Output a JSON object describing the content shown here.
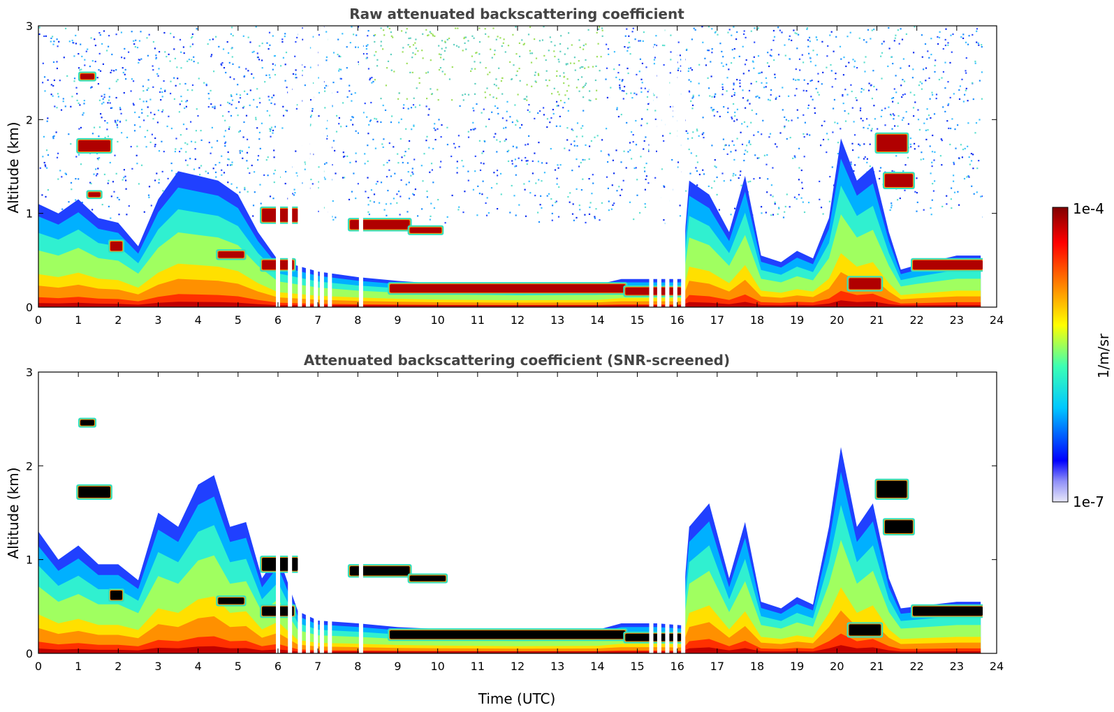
{
  "chart_data": [
    {
      "type": "heatmap",
      "title": "Raw attenuated backscattering coefficient",
      "xlabel": "",
      "ylabel": "Altitude (km)",
      "xlim": [
        0,
        24
      ],
      "ylim": [
        0,
        3
      ],
      "x_ticks": [
        "0",
        "1",
        "2",
        "3",
        "4",
        "5",
        "6",
        "7",
        "8",
        "9",
        "10",
        "11",
        "12",
        "13",
        "14",
        "15",
        "16",
        "17",
        "18",
        "19",
        "20",
        "21",
        "22",
        "23",
        "24"
      ],
      "y_ticks": [
        "0",
        "1",
        "2",
        "3"
      ],
      "screened": false,
      "data_end_hour": 23.65,
      "gaps_utc": [
        6.0,
        6.3,
        6.55,
        6.75,
        6.95,
        7.1,
        7.3,
        8.08,
        15.35,
        15.55,
        15.75,
        15.95,
        16.15
      ],
      "boundary_layer_top_km": [
        [
          0,
          1.1
        ],
        [
          0.5,
          1.0
        ],
        [
          1.0,
          1.15
        ],
        [
          1.5,
          0.95
        ],
        [
          2.0,
          0.9
        ],
        [
          2.5,
          0.65
        ],
        [
          3.0,
          1.15
        ],
        [
          3.5,
          1.45
        ],
        [
          4.0,
          1.4
        ],
        [
          4.5,
          1.35
        ],
        [
          5.0,
          1.2
        ],
        [
          5.5,
          0.8
        ],
        [
          6.0,
          0.5
        ],
        [
          7.0,
          0.38
        ],
        [
          8.0,
          0.32
        ],
        [
          9.0,
          0.28
        ],
        [
          10.0,
          0.25
        ],
        [
          12.0,
          0.23
        ],
        [
          14.0,
          0.24
        ],
        [
          14.6,
          0.3
        ],
        [
          15.5,
          0.3
        ],
        [
          16.1,
          0.3
        ],
        [
          16.3,
          1.35
        ],
        [
          16.8,
          1.2
        ],
        [
          17.3,
          0.8
        ],
        [
          17.7,
          1.4
        ],
        [
          18.1,
          0.55
        ],
        [
          18.6,
          0.48
        ],
        [
          19.0,
          0.6
        ],
        [
          19.4,
          0.52
        ],
        [
          19.8,
          0.95
        ],
        [
          20.1,
          1.8
        ],
        [
          20.5,
          1.35
        ],
        [
          20.9,
          1.5
        ],
        [
          21.3,
          0.8
        ],
        [
          21.6,
          0.4
        ],
        [
          22.0,
          0.45
        ],
        [
          23.0,
          0.55
        ],
        [
          23.6,
          0.55
        ]
      ],
      "cloud_layers": [
        {
          "t0": 1.05,
          "t1": 1.4,
          "z": 2.46,
          "dz": 0.06
        },
        {
          "t0": 1.0,
          "t1": 1.8,
          "z": 1.72,
          "dz": 0.12
        },
        {
          "t0": 1.25,
          "t1": 1.55,
          "z": 1.2,
          "dz": 0.05
        },
        {
          "t0": 1.8,
          "t1": 2.1,
          "z": 0.65,
          "dz": 0.1
        },
        {
          "t0": 4.5,
          "t1": 5.15,
          "z": 0.56,
          "dz": 0.07
        },
        {
          "t0": 5.6,
          "t1": 6.5,
          "z": 0.98,
          "dz": 0.14
        },
        {
          "t0": 5.6,
          "t1": 6.4,
          "z": 0.45,
          "dz": 0.1
        },
        {
          "t0": 7.8,
          "t1": 9.3,
          "z": 0.88,
          "dz": 0.1
        },
        {
          "t0": 9.3,
          "t1": 10.1,
          "z": 0.82,
          "dz": 0.06
        },
        {
          "t0": 8.8,
          "t1": 14.7,
          "z": 0.2,
          "dz": 0.09
        },
        {
          "t0": 14.7,
          "t1": 16.1,
          "z": 0.17,
          "dz": 0.08
        },
        {
          "t0": 20.3,
          "t1": 21.1,
          "z": 0.25,
          "dz": 0.12
        },
        {
          "t0": 21.0,
          "t1": 21.75,
          "z": 1.75,
          "dz": 0.18
        },
        {
          "t0": 21.2,
          "t1": 21.9,
          "z": 1.35,
          "dz": 0.14
        },
        {
          "t0": 21.9,
          "t1": 23.65,
          "z": 0.45,
          "dz": 0.1
        }
      ]
    },
    {
      "type": "heatmap",
      "title": "Attenuated backscattering coefficient (SNR-screened)",
      "xlabel": "Time (UTC)",
      "ylabel": "Altitude (km)",
      "xlim": [
        0,
        24
      ],
      "ylim": [
        0,
        3
      ],
      "x_ticks": [
        "0",
        "1",
        "2",
        "3",
        "4",
        "5",
        "6",
        "7",
        "8",
        "9",
        "10",
        "11",
        "12",
        "13",
        "14",
        "15",
        "16",
        "17",
        "18",
        "19",
        "20",
        "21",
        "22",
        "23",
        "24"
      ],
      "y_ticks": [
        "0",
        "1",
        "2",
        "3"
      ],
      "screened": true,
      "data_end_hour": 23.65,
      "gaps_utc": [
        6.0,
        6.3,
        6.55,
        6.75,
        6.95,
        7.1,
        7.3,
        8.08,
        15.35,
        15.55,
        15.75,
        15.95,
        16.15
      ],
      "boundary_layer_top_km": [
        [
          0,
          1.3
        ],
        [
          0.5,
          1.0
        ],
        [
          1.0,
          1.15
        ],
        [
          1.5,
          0.95
        ],
        [
          2.0,
          0.95
        ],
        [
          2.5,
          0.78
        ],
        [
          3.0,
          1.5
        ],
        [
          3.5,
          1.35
        ],
        [
          4.0,
          1.8
        ],
        [
          4.4,
          1.9
        ],
        [
          4.8,
          1.35
        ],
        [
          5.2,
          1.4
        ],
        [
          5.6,
          0.8
        ],
        [
          6.0,
          1.05
        ],
        [
          6.5,
          0.45
        ],
        [
          7.0,
          0.35
        ],
        [
          8.0,
          0.32
        ],
        [
          9.0,
          0.28
        ],
        [
          10.0,
          0.26
        ],
        [
          12.0,
          0.24
        ],
        [
          14.0,
          0.25
        ],
        [
          14.6,
          0.32
        ],
        [
          15.5,
          0.32
        ],
        [
          16.1,
          0.3
        ],
        [
          16.3,
          1.35
        ],
        [
          16.8,
          1.6
        ],
        [
          17.3,
          0.8
        ],
        [
          17.7,
          1.4
        ],
        [
          18.1,
          0.55
        ],
        [
          18.6,
          0.48
        ],
        [
          19.0,
          0.6
        ],
        [
          19.4,
          0.52
        ],
        [
          19.8,
          1.35
        ],
        [
          20.1,
          2.2
        ],
        [
          20.5,
          1.35
        ],
        [
          20.9,
          1.6
        ],
        [
          21.3,
          0.8
        ],
        [
          21.6,
          0.48
        ],
        [
          22.0,
          0.5
        ],
        [
          23.0,
          0.55
        ],
        [
          23.6,
          0.55
        ]
      ],
      "cloud_layers": [
        {
          "t0": 1.05,
          "t1": 1.4,
          "z": 2.46,
          "dz": 0.06
        },
        {
          "t0": 1.0,
          "t1": 1.8,
          "z": 1.72,
          "dz": 0.12
        },
        {
          "t0": 1.8,
          "t1": 2.1,
          "z": 0.62,
          "dz": 0.1
        },
        {
          "t0": 4.5,
          "t1": 5.15,
          "z": 0.56,
          "dz": 0.07
        },
        {
          "t0": 5.6,
          "t1": 6.5,
          "z": 0.95,
          "dz": 0.14
        },
        {
          "t0": 5.6,
          "t1": 6.4,
          "z": 0.45,
          "dz": 0.1
        },
        {
          "t0": 7.8,
          "t1": 9.3,
          "z": 0.88,
          "dz": 0.1
        },
        {
          "t0": 9.3,
          "t1": 10.2,
          "z": 0.8,
          "dz": 0.06
        },
        {
          "t0": 8.8,
          "t1": 14.7,
          "z": 0.2,
          "dz": 0.09
        },
        {
          "t0": 14.7,
          "t1": 16.1,
          "z": 0.17,
          "dz": 0.08
        },
        {
          "t0": 20.3,
          "t1": 21.1,
          "z": 0.25,
          "dz": 0.12
        },
        {
          "t0": 21.0,
          "t1": 21.75,
          "z": 1.75,
          "dz": 0.18
        },
        {
          "t0": 21.2,
          "t1": 21.9,
          "z": 1.35,
          "dz": 0.14
        },
        {
          "t0": 21.9,
          "t1": 23.65,
          "z": 0.45,
          "dz": 0.1
        }
      ]
    }
  ],
  "colorbar": {
    "label": "1/m/sr",
    "max_label": "1e-4",
    "min_label": "1e-7",
    "stops": [
      "#e8e8f8",
      "#0000ff",
      "#00c8ff",
      "#3cffb4",
      "#ffff00",
      "#ff8000",
      "#ff0000",
      "#800000"
    ]
  }
}
